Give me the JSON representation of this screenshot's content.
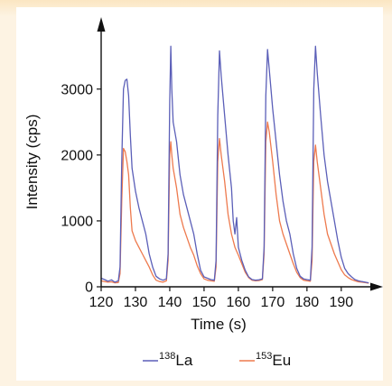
{
  "chart_data": {
    "type": "line",
    "title": "",
    "xlabel": "Time (s)",
    "ylabel": "Intensity (cps)",
    "xlim": [
      120,
      199
    ],
    "ylim": [
      0,
      3900
    ],
    "x_ticks": [
      120,
      130,
      140,
      150,
      160,
      170,
      180,
      190
    ],
    "y_ticks": [
      0,
      1000,
      2000,
      3000
    ],
    "grid": false,
    "legend_position": "bottom",
    "series": [
      {
        "mass": "138",
        "element": "La",
        "color": "#5b5fb8",
        "points": [
          [
            120,
            130
          ],
          [
            121,
            110
          ],
          [
            122,
            85
          ],
          [
            123,
            105
          ],
          [
            124,
            70
          ],
          [
            125,
            90
          ],
          [
            125.5,
            300
          ],
          [
            126,
            1900
          ],
          [
            126.5,
            3000
          ],
          [
            127,
            3130
          ],
          [
            127.5,
            3150
          ],
          [
            128,
            2900
          ],
          [
            128.5,
            2300
          ],
          [
            129,
            1800
          ],
          [
            130,
            1450
          ],
          [
            131,
            1200
          ],
          [
            132,
            1000
          ],
          [
            133,
            800
          ],
          [
            134,
            500
          ],
          [
            135,
            300
          ],
          [
            136,
            160
          ],
          [
            137,
            120
          ],
          [
            138,
            100
          ],
          [
            139,
            120
          ],
          [
            139.5,
            500
          ],
          [
            140,
            2800
          ],
          [
            140.3,
            3650
          ],
          [
            140.6,
            3000
          ],
          [
            141,
            2500
          ],
          [
            142,
            2200
          ],
          [
            143,
            1700
          ],
          [
            144,
            1400
          ],
          [
            145,
            1200
          ],
          [
            146,
            1000
          ],
          [
            147,
            800
          ],
          [
            148,
            500
          ],
          [
            149,
            250
          ],
          [
            150,
            150
          ],
          [
            151,
            130
          ],
          [
            152,
            110
          ],
          [
            153,
            100
          ],
          [
            153.5,
            400
          ],
          [
            154,
            2600
          ],
          [
            154.5,
            3580
          ],
          [
            155,
            3200
          ],
          [
            156,
            2600
          ],
          [
            157,
            2000
          ],
          [
            158,
            1500
          ],
          [
            158.5,
            1000
          ],
          [
            159,
            800
          ],
          [
            159.5,
            1050
          ],
          [
            160,
            600
          ],
          [
            161,
            400
          ],
          [
            162,
            250
          ],
          [
            163,
            150
          ],
          [
            164,
            110
          ],
          [
            165,
            100
          ],
          [
            166,
            105
          ],
          [
            167,
            120
          ],
          [
            167.5,
            600
          ],
          [
            168,
            2900
          ],
          [
            168.5,
            3600
          ],
          [
            169,
            3300
          ],
          [
            170,
            2700
          ],
          [
            171,
            2200
          ],
          [
            172,
            1700
          ],
          [
            173,
            1300
          ],
          [
            174,
            1000
          ],
          [
            175,
            800
          ],
          [
            176,
            500
          ],
          [
            177,
            280
          ],
          [
            178,
            160
          ],
          [
            179,
            120
          ],
          [
            180,
            110
          ],
          [
            181,
            100
          ],
          [
            181.5,
            600
          ],
          [
            182,
            3000
          ],
          [
            182.5,
            3650
          ],
          [
            183,
            3250
          ],
          [
            184,
            2600
          ],
          [
            185,
            2000
          ],
          [
            186,
            1600
          ],
          [
            187,
            1300
          ],
          [
            188,
            1000
          ],
          [
            189,
            700
          ],
          [
            190,
            450
          ],
          [
            191,
            280
          ],
          [
            192,
            200
          ],
          [
            193,
            150
          ],
          [
            194,
            110
          ],
          [
            195,
            90
          ],
          [
            196,
            80
          ],
          [
            197,
            70
          ],
          [
            198,
            60
          ]
        ]
      },
      {
        "mass": "153",
        "element": "Eu",
        "color": "#ee7a4e",
        "points": [
          [
            120,
            90
          ],
          [
            121,
            80
          ],
          [
            122,
            70
          ],
          [
            123,
            75
          ],
          [
            124,
            60
          ],
          [
            125,
            65
          ],
          [
            125.5,
            200
          ],
          [
            126,
            1300
          ],
          [
            126.5,
            2100
          ],
          [
            127,
            2050
          ],
          [
            127.5,
            1900
          ],
          [
            128,
            1700
          ],
          [
            128.5,
            1200
          ],
          [
            129,
            850
          ],
          [
            130,
            700
          ],
          [
            131,
            600
          ],
          [
            132,
            500
          ],
          [
            133,
            400
          ],
          [
            134,
            300
          ],
          [
            135,
            180
          ],
          [
            136,
            100
          ],
          [
            137,
            80
          ],
          [
            138,
            70
          ],
          [
            139,
            90
          ],
          [
            139.5,
            400
          ],
          [
            140,
            2000
          ],
          [
            140.3,
            2200
          ],
          [
            140.6,
            2000
          ],
          [
            141,
            1800
          ],
          [
            142,
            1500
          ],
          [
            143,
            1100
          ],
          [
            144,
            900
          ],
          [
            145,
            750
          ],
          [
            146,
            600
          ],
          [
            147,
            480
          ],
          [
            148,
            320
          ],
          [
            149,
            200
          ],
          [
            150,
            120
          ],
          [
            151,
            100
          ],
          [
            152,
            90
          ],
          [
            153,
            85
          ],
          [
            153.5,
            300
          ],
          [
            154,
            1900
          ],
          [
            154.5,
            2250
          ],
          [
            155,
            2000
          ],
          [
            156,
            1600
          ],
          [
            157,
            1100
          ],
          [
            158,
            800
          ],
          [
            159,
            600
          ],
          [
            160,
            480
          ],
          [
            161,
            350
          ],
          [
            162,
            220
          ],
          [
            163,
            140
          ],
          [
            164,
            100
          ],
          [
            165,
            90
          ],
          [
            166,
            95
          ],
          [
            167,
            110
          ],
          [
            167.5,
            500
          ],
          [
            168,
            2200
          ],
          [
            168.5,
            2500
          ],
          [
            169,
            2350
          ],
          [
            170,
            1900
          ],
          [
            171,
            1400
          ],
          [
            172,
            1000
          ],
          [
            173,
            800
          ],
          [
            174,
            650
          ],
          [
            175,
            500
          ],
          [
            176,
            350
          ],
          [
            177,
            220
          ],
          [
            178,
            140
          ],
          [
            179,
            100
          ],
          [
            180,
            90
          ],
          [
            181,
            85
          ],
          [
            181.5,
            400
          ],
          [
            182,
            1900
          ],
          [
            182.5,
            2150
          ],
          [
            183,
            1900
          ],
          [
            184,
            1500
          ],
          [
            185,
            1100
          ],
          [
            186,
            800
          ],
          [
            187,
            650
          ],
          [
            188,
            500
          ],
          [
            189,
            380
          ],
          [
            190,
            260
          ],
          [
            191,
            180
          ],
          [
            192,
            140
          ],
          [
            193,
            110
          ],
          [
            194,
            90
          ],
          [
            195,
            75
          ],
          [
            196,
            70
          ],
          [
            197,
            65
          ],
          [
            198,
            55
          ]
        ]
      }
    ]
  }
}
